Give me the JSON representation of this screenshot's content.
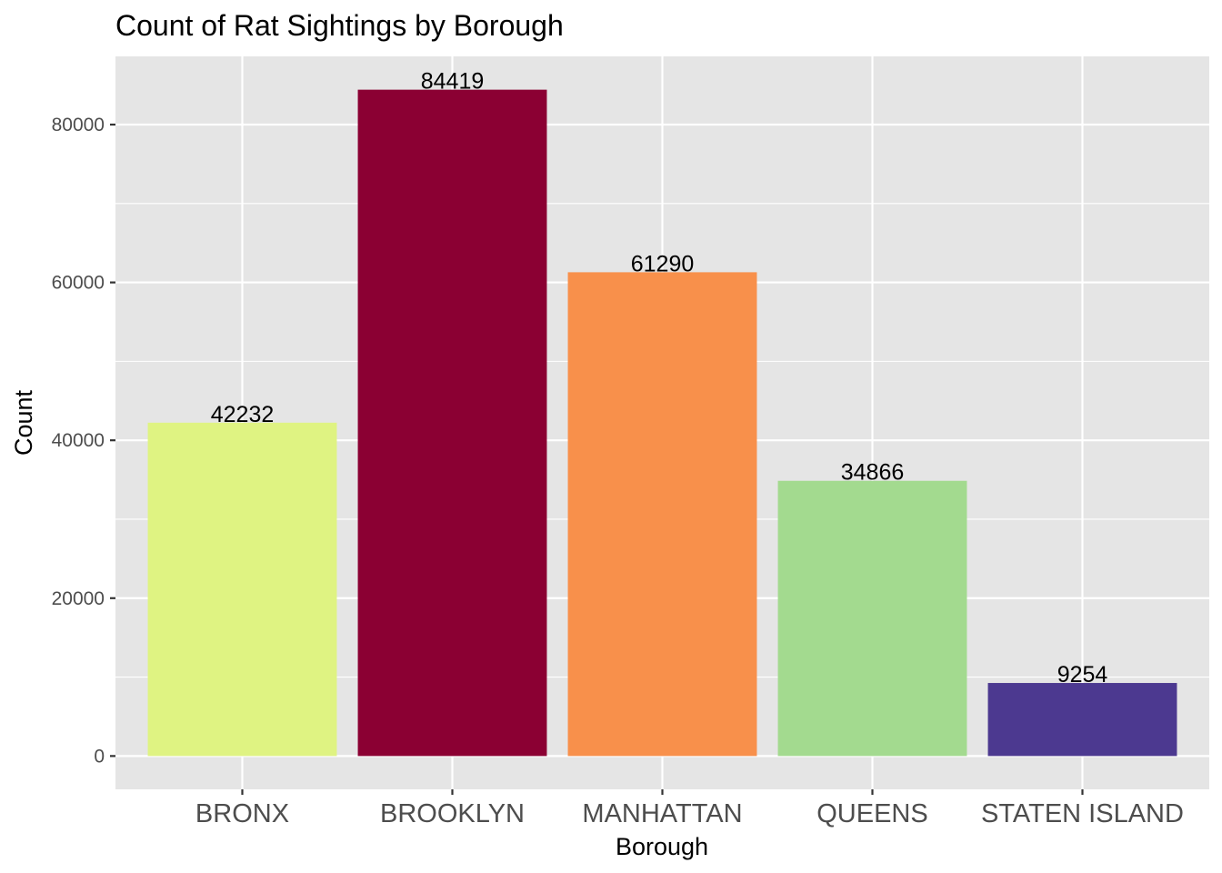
{
  "chart_data": {
    "type": "bar",
    "title": "Count of Rat Sightings by Borough",
    "xlabel": "Borough",
    "ylabel": "Count",
    "categories": [
      "BRONX",
      "BROOKLYN",
      "MANHATTAN",
      "QUEENS",
      "STATEN ISLAND"
    ],
    "values": [
      42232,
      84419,
      61290,
      34866,
      9254
    ],
    "data_labels": [
      "42232",
      "84419",
      "61290",
      "34866",
      "9254"
    ],
    "colors": [
      "#dff382",
      "#8b0033",
      "#f8904b",
      "#a3da8f",
      "#4c3990"
    ],
    "ylim": [
      -4221,
      88640
    ],
    "y_ticks": [
      0,
      20000,
      40000,
      60000,
      80000
    ],
    "y_tick_labels": [
      "0",
      "20000",
      "40000",
      "60000",
      "80000"
    ],
    "panel_background": "#e5e5e5",
    "grid": true,
    "grid_color": "#ffffff",
    "legend": "none"
  }
}
